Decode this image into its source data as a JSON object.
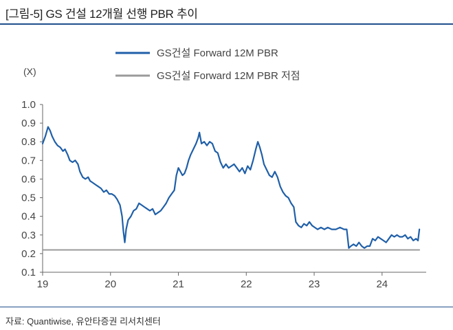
{
  "title": "[그림-5] GS 건설 12개월 선행 PBR 추이",
  "source": "자료: Quantiwise, 유안타증권 리서치센터",
  "chart_data": {
    "type": "line",
    "title": "[그림-5] GS 건설 12개월 선행 PBR 추이",
    "ylabel": "(X)",
    "xlabel": "",
    "ylim": [
      0.1,
      1.0
    ],
    "xlim": [
      2019.0,
      2024.65
    ],
    "yticks": [
      "0.1",
      "0.2",
      "0.3",
      "0.4",
      "0.5",
      "0.6",
      "0.7",
      "0.8",
      "0.9",
      "1.0"
    ],
    "xticks": [
      {
        "value": 2019,
        "label": "19"
      },
      {
        "value": 2020,
        "label": "20"
      },
      {
        "value": 2021,
        "label": "21"
      },
      {
        "value": 2022,
        "label": "22"
      },
      {
        "value": 2023,
        "label": "23"
      },
      {
        "value": 2024,
        "label": "24"
      }
    ],
    "series": [
      {
        "name": "GS건설 Forward 12M PBR",
        "color": "#1f5fa8",
        "points": [
          [
            2019.0,
            0.79
          ],
          [
            2019.04,
            0.83
          ],
          [
            2019.08,
            0.88
          ],
          [
            2019.11,
            0.86
          ],
          [
            2019.14,
            0.83
          ],
          [
            2019.18,
            0.8
          ],
          [
            2019.22,
            0.78
          ],
          [
            2019.26,
            0.77
          ],
          [
            2019.3,
            0.75
          ],
          [
            2019.33,
            0.76
          ],
          [
            2019.37,
            0.73
          ],
          [
            2019.4,
            0.7
          ],
          [
            2019.44,
            0.69
          ],
          [
            2019.48,
            0.7
          ],
          [
            2019.52,
            0.68
          ],
          [
            2019.55,
            0.64
          ],
          [
            2019.59,
            0.61
          ],
          [
            2019.63,
            0.6
          ],
          [
            2019.67,
            0.61
          ],
          [
            2019.7,
            0.59
          ],
          [
            2019.74,
            0.58
          ],
          [
            2019.78,
            0.57
          ],
          [
            2019.82,
            0.56
          ],
          [
            2019.86,
            0.55
          ],
          [
            2019.9,
            0.53
          ],
          [
            2019.94,
            0.54
          ],
          [
            2019.98,
            0.52
          ],
          [
            2020.02,
            0.52
          ],
          [
            2020.06,
            0.51
          ],
          [
            2020.1,
            0.49
          ],
          [
            2020.14,
            0.46
          ],
          [
            2020.17,
            0.4
          ],
          [
            2020.19,
            0.32
          ],
          [
            2020.21,
            0.26
          ],
          [
            2020.23,
            0.33
          ],
          [
            2020.26,
            0.38
          ],
          [
            2020.3,
            0.4
          ],
          [
            2020.34,
            0.43
          ],
          [
            2020.38,
            0.44
          ],
          [
            2020.42,
            0.47
          ],
          [
            2020.46,
            0.46
          ],
          [
            2020.5,
            0.45
          ],
          [
            2020.54,
            0.44
          ],
          [
            2020.58,
            0.43
          ],
          [
            2020.62,
            0.44
          ],
          [
            2020.66,
            0.41
          ],
          [
            2020.7,
            0.42
          ],
          [
            2020.74,
            0.43
          ],
          [
            2020.78,
            0.45
          ],
          [
            2020.82,
            0.47
          ],
          [
            2020.86,
            0.5
          ],
          [
            2020.9,
            0.52
          ],
          [
            2020.94,
            0.54
          ],
          [
            2020.97,
            0.62
          ],
          [
            2021.0,
            0.66
          ],
          [
            2021.03,
            0.64
          ],
          [
            2021.06,
            0.62
          ],
          [
            2021.09,
            0.63
          ],
          [
            2021.12,
            0.66
          ],
          [
            2021.15,
            0.7
          ],
          [
            2021.18,
            0.73
          ],
          [
            2021.22,
            0.76
          ],
          [
            2021.26,
            0.79
          ],
          [
            2021.29,
            0.82
          ],
          [
            2021.31,
            0.85
          ],
          [
            2021.34,
            0.79
          ],
          [
            2021.38,
            0.8
          ],
          [
            2021.42,
            0.78
          ],
          [
            2021.46,
            0.8
          ],
          [
            2021.5,
            0.79
          ],
          [
            2021.54,
            0.75
          ],
          [
            2021.58,
            0.74
          ],
          [
            2021.62,
            0.69
          ],
          [
            2021.66,
            0.66
          ],
          [
            2021.7,
            0.68
          ],
          [
            2021.74,
            0.66
          ],
          [
            2021.78,
            0.67
          ],
          [
            2021.82,
            0.68
          ],
          [
            2021.86,
            0.66
          ],
          [
            2021.9,
            0.64
          ],
          [
            2021.94,
            0.66
          ],
          [
            2021.98,
            0.63
          ],
          [
            2022.02,
            0.67
          ],
          [
            2022.06,
            0.65
          ],
          [
            2022.1,
            0.7
          ],
          [
            2022.14,
            0.76
          ],
          [
            2022.17,
            0.8
          ],
          [
            2022.2,
            0.77
          ],
          [
            2022.23,
            0.73
          ],
          [
            2022.26,
            0.68
          ],
          [
            2022.3,
            0.65
          ],
          [
            2022.34,
            0.62
          ],
          [
            2022.38,
            0.61
          ],
          [
            2022.42,
            0.64
          ],
          [
            2022.46,
            0.61
          ],
          [
            2022.5,
            0.56
          ],
          [
            2022.54,
            0.53
          ],
          [
            2022.58,
            0.51
          ],
          [
            2022.62,
            0.5
          ],
          [
            2022.66,
            0.47
          ],
          [
            2022.7,
            0.45
          ],
          [
            2022.73,
            0.37
          ],
          [
            2022.77,
            0.35
          ],
          [
            2022.81,
            0.34
          ],
          [
            2022.85,
            0.36
          ],
          [
            2022.89,
            0.35
          ],
          [
            2022.93,
            0.37
          ],
          [
            2022.97,
            0.35
          ],
          [
            2023.01,
            0.34
          ],
          [
            2023.05,
            0.33
          ],
          [
            2023.1,
            0.34
          ],
          [
            2023.15,
            0.33
          ],
          [
            2023.2,
            0.34
          ],
          [
            2023.26,
            0.33
          ],
          [
            2023.32,
            0.33
          ],
          [
            2023.38,
            0.34
          ],
          [
            2023.44,
            0.33
          ],
          [
            2023.48,
            0.33
          ],
          [
            2023.51,
            0.23
          ],
          [
            2023.54,
            0.24
          ],
          [
            2023.58,
            0.25
          ],
          [
            2023.62,
            0.24
          ],
          [
            2023.66,
            0.26
          ],
          [
            2023.7,
            0.24
          ],
          [
            2023.74,
            0.23
          ],
          [
            2023.78,
            0.24
          ],
          [
            2023.82,
            0.24
          ],
          [
            2023.86,
            0.28
          ],
          [
            2023.9,
            0.27
          ],
          [
            2023.94,
            0.29
          ],
          [
            2023.98,
            0.28
          ],
          [
            2024.02,
            0.27
          ],
          [
            2024.06,
            0.26
          ],
          [
            2024.1,
            0.28
          ],
          [
            2024.14,
            0.3
          ],
          [
            2024.18,
            0.29
          ],
          [
            2024.22,
            0.3
          ],
          [
            2024.26,
            0.29
          ],
          [
            2024.3,
            0.29
          ],
          [
            2024.34,
            0.3
          ],
          [
            2024.38,
            0.28
          ],
          [
            2024.42,
            0.29
          ],
          [
            2024.46,
            0.27
          ],
          [
            2024.5,
            0.28
          ],
          [
            2024.53,
            0.27
          ],
          [
            2024.55,
            0.33
          ]
        ]
      },
      {
        "name": "GS건설 Forward 12M PBR 저점",
        "color": "#9a9a9a",
        "points": [
          [
            2019.0,
            0.22
          ],
          [
            2024.55,
            0.22
          ]
        ]
      }
    ],
    "legend": "top"
  }
}
